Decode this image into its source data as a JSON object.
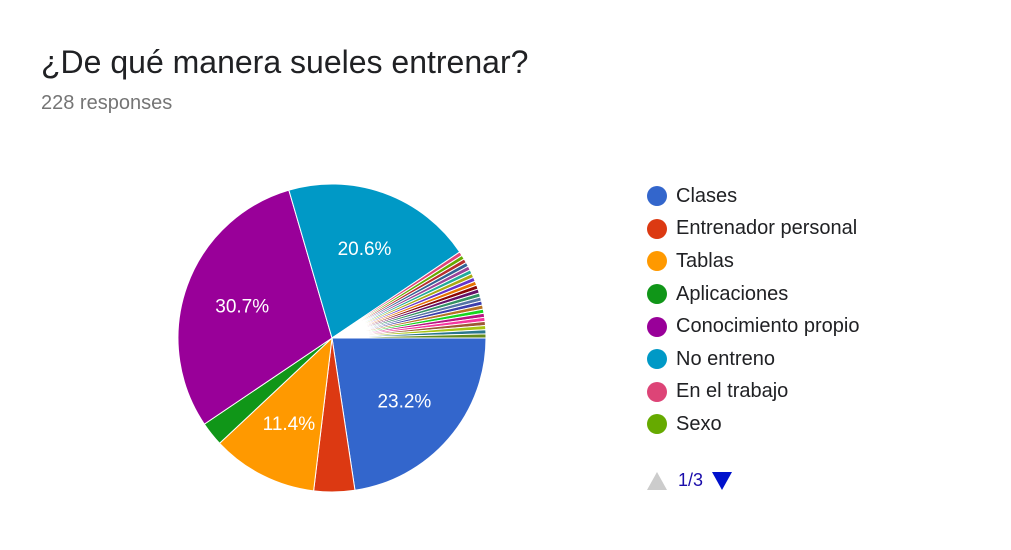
{
  "header": {
    "title": "¿De qué manera sueles entrenar?",
    "responses": "228 responses"
  },
  "chart_data": {
    "type": "pie",
    "slices": [
      {
        "name": "Clases",
        "value": 23.2,
        "color": "#3366cc",
        "label": "23.2%"
      },
      {
        "name": "Entrenador personal",
        "value": 4.4,
        "color": "#dc3912",
        "label": ""
      },
      {
        "name": "Tablas",
        "value": 11.4,
        "color": "#ff9900",
        "label": "11.4%"
      },
      {
        "name": "Aplicaciones",
        "value": 2.6,
        "color": "#109618",
        "label": ""
      },
      {
        "name": "Conocimiento propio",
        "value": 30.7,
        "color": "#990099",
        "label": "30.7%"
      },
      {
        "name": "No entreno",
        "value": 20.6,
        "color": "#0099c6",
        "label": "20.6%"
      },
      {
        "name": "En el trabajo",
        "value": 0.44,
        "color": "#dd4477",
        "label": ""
      },
      {
        "name": "Sexo",
        "value": 0.44,
        "color": "#66aa00",
        "label": ""
      },
      {
        "value": 0.44,
        "color": "#b82e2e",
        "label": ""
      },
      {
        "value": 0.44,
        "color": "#316395",
        "label": ""
      },
      {
        "value": 0.44,
        "color": "#994499",
        "label": ""
      },
      {
        "value": 0.44,
        "color": "#22aa99",
        "label": ""
      },
      {
        "value": 0.44,
        "color": "#aaaa11",
        "label": ""
      },
      {
        "value": 0.44,
        "color": "#6633cc",
        "label": ""
      },
      {
        "value": 0.44,
        "color": "#e67300",
        "label": ""
      },
      {
        "value": 0.44,
        "color": "#8b0707",
        "label": ""
      },
      {
        "value": 0.44,
        "color": "#651067",
        "label": ""
      },
      {
        "value": 0.44,
        "color": "#329262",
        "label": ""
      },
      {
        "value": 0.44,
        "color": "#5574a6",
        "label": ""
      },
      {
        "value": 0.44,
        "color": "#3b3eac",
        "label": ""
      },
      {
        "value": 0.44,
        "color": "#b77322",
        "label": ""
      },
      {
        "value": 0.44,
        "color": "#16d620",
        "label": ""
      },
      {
        "value": 0.44,
        "color": "#b91383",
        "label": ""
      },
      {
        "value": 0.44,
        "color": "#f4359e",
        "label": ""
      },
      {
        "value": 0.44,
        "color": "#9c5935",
        "label": ""
      },
      {
        "value": 0.44,
        "color": "#a9c413",
        "label": ""
      },
      {
        "value": 0.44,
        "color": "#2a778d",
        "label": ""
      },
      {
        "value": 0.44,
        "color": "#668d1c",
        "label": ""
      }
    ],
    "legend_position": "right"
  },
  "legend": {
    "items": [
      {
        "label": "Clases",
        "color": "#3366cc"
      },
      {
        "label": "Entrenador personal",
        "color": "#dc3912"
      },
      {
        "label": "Tablas",
        "color": "#ff9900"
      },
      {
        "label": "Aplicaciones",
        "color": "#109618"
      },
      {
        "label": "Conocimiento propio",
        "color": "#990099"
      },
      {
        "label": "No entreno",
        "color": "#0099c6"
      },
      {
        "label": "En el trabajo",
        "color": "#dd4477"
      },
      {
        "label": "Sexo",
        "color": "#66aa00"
      }
    ]
  },
  "pager": {
    "text": "1/3",
    "up_icon": "triangle-up-icon",
    "down_icon": "triangle-down-icon",
    "up_color": "#cccccc",
    "down_color": "#0011cc"
  }
}
